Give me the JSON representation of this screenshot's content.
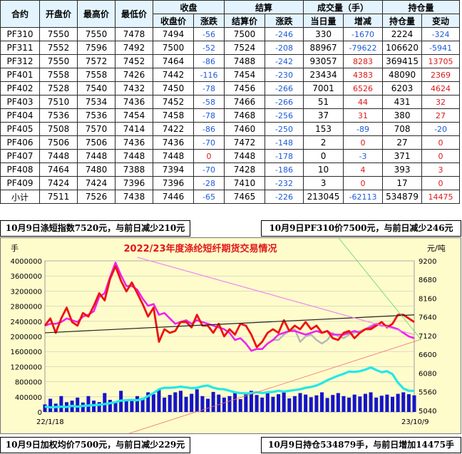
{
  "table": {
    "headers_top": {
      "contract": "合约",
      "open": "开盘价",
      "high": "最高价",
      "low": "最低价",
      "close_group": "收盘",
      "settle_group": "结算",
      "volume_group": "成交量（手）",
      "oi_group": "持仓量"
    },
    "headers_sub": {
      "close_price": "收盘价",
      "close_change": "涨跌",
      "settle_price": "结算价",
      "settle_change": "涨跌",
      "volume_today": "当日量",
      "volume_change": "增减",
      "oi_amount": "持仓量",
      "oi_change": "变动"
    },
    "rows": [
      {
        "contract": "PF310",
        "open": "7550",
        "high": "7550",
        "low": "7478",
        "close": "7494",
        "close_chg": "-56",
        "settle": "7500",
        "settle_chg": "-246",
        "vol": "330",
        "vol_chg": "-1670",
        "oi": "2224",
        "oi_chg": "-324"
      },
      {
        "contract": "PF311",
        "open": "7552",
        "high": "7596",
        "low": "7492",
        "close": "7500",
        "close_chg": "-52",
        "settle": "7524",
        "settle_chg": "-208",
        "vol": "88967",
        "vol_chg": "-79622",
        "oi": "106620",
        "oi_chg": "-5941"
      },
      {
        "contract": "PF312",
        "open": "7550",
        "high": "7572",
        "low": "7452",
        "close": "7464",
        "close_chg": "-86",
        "settle": "7488",
        "settle_chg": "-242",
        "vol": "93057",
        "vol_chg": "8283",
        "oi": "369415",
        "oi_chg": "13705"
      },
      {
        "contract": "PF401",
        "open": "7558",
        "high": "7558",
        "low": "7426",
        "close": "7442",
        "close_chg": "-116",
        "settle": "7454",
        "settle_chg": "-230",
        "vol": "23434",
        "vol_chg": "4383",
        "oi": "48090",
        "oi_chg": "2369"
      },
      {
        "contract": "PF402",
        "open": "7528",
        "high": "7540",
        "low": "7432",
        "close": "7450",
        "close_chg": "-78",
        "settle": "7456",
        "settle_chg": "-266",
        "vol": "7001",
        "vol_chg": "6526",
        "oi": "6203",
        "oi_chg": "4624"
      },
      {
        "contract": "PF403",
        "open": "7510",
        "high": "7534",
        "low": "7436",
        "close": "7452",
        "close_chg": "-58",
        "settle": "7466",
        "settle_chg": "-266",
        "vol": "51",
        "vol_chg": "44",
        "oi": "431",
        "oi_chg": "32"
      },
      {
        "contract": "PF404",
        "open": "7536",
        "high": "7536",
        "low": "7454",
        "close": "7458",
        "close_chg": "-78",
        "settle": "7468",
        "settle_chg": "-256",
        "vol": "37",
        "vol_chg": "31",
        "oi": "380",
        "oi_chg": "27"
      },
      {
        "contract": "PF405",
        "open": "7508",
        "high": "7570",
        "low": "7414",
        "close": "7422",
        "close_chg": "-86",
        "settle": "7460",
        "settle_chg": "-250",
        "vol": "153",
        "vol_chg": "-89",
        "oi": "708",
        "oi_chg": "-20"
      },
      {
        "contract": "PF406",
        "open": "7506",
        "high": "7506",
        "low": "7436",
        "close": "7436",
        "close_chg": "-70",
        "settle": "7472",
        "settle_chg": "-148",
        "vol": "2",
        "vol_chg": "0",
        "oi": "27",
        "oi_chg": "0"
      },
      {
        "contract": "PF407",
        "open": "7448",
        "high": "7448",
        "low": "7448",
        "close": "7448",
        "close_chg": "0",
        "settle": "7448",
        "settle_chg": "-178",
        "vol": "0",
        "vol_chg": "-3",
        "oi": "371",
        "oi_chg": "0"
      },
      {
        "contract": "PF408",
        "open": "7464",
        "high": "7480",
        "low": "7388",
        "close": "7394",
        "close_chg": "-70",
        "settle": "7428",
        "settle_chg": "-186",
        "vol": "10",
        "vol_chg": "4",
        "oi": "393",
        "oi_chg": "3"
      },
      {
        "contract": "PF409",
        "open": "7424",
        "high": "7424",
        "low": "7396",
        "close": "7396",
        "close_chg": "-28",
        "settle": "7410",
        "settle_chg": "-232",
        "vol": "3",
        "vol_chg": "0",
        "oi": "17",
        "oi_chg": "0"
      },
      {
        "contract": "小计",
        "open": "7511",
        "high": "7526",
        "low": "7438",
        "close": "7446",
        "close_chg": "-65",
        "settle": "7465",
        "settle_chg": "-226",
        "vol": "213045",
        "vol_chg": "-62113",
        "oi": "534879",
        "oi_chg": "14475"
      }
    ]
  },
  "notes": {
    "short_index": "10月9日涤短指数7520元，与前日减少210元",
    "pf310": "10月9日PF310价7500元，与前日减少246元",
    "weighted_avg": "10月9日加权均价7500元，与前日减少229元",
    "open_interest": "10月9日持仓534879手，与前日增加14475手"
  },
  "colors": {
    "up": "#e01818",
    "down": "#1d5bd8",
    "header_bg": "#e3f4ff",
    "chart_bg": "#fffccc"
  },
  "chart_data": {
    "type": "line",
    "title": "2022/23年度涤纶短纤期货交易情况",
    "left_axis_unit": "手",
    "right_axis_unit": "元/吨",
    "left_ticks": [
      "4000000",
      "3600000",
      "3200000",
      "2800000",
      "2400000",
      "2000000",
      "1600000",
      "1200000",
      "800000",
      "400000",
      "0"
    ],
    "right_ticks": [
      "9200",
      "8680",
      "8160",
      "7640",
      "7120",
      "6600",
      "6080",
      "5560",
      "5040"
    ],
    "left_ylim": [
      0,
      4000000
    ],
    "right_ylim": [
      5000,
      9200
    ],
    "x_start_label": "22/1/18",
    "x_end_label": "23/10/9",
    "grid": true,
    "series": [
      {
        "axis": "right",
        "color": "#ee1111",
        "values": [
          7400,
          7600,
          7200,
          7600,
          7900,
          7500,
          7400,
          7750,
          7650,
          7950,
          8300,
          8100,
          8700,
          9050,
          8650,
          8350,
          8600,
          8300,
          8000,
          7650,
          7900,
          6950,
          7300,
          7200,
          7250,
          7500,
          7500,
          7350,
          7700,
          7400,
          7400,
          7200,
          7450,
          7100,
          7300,
          7150,
          7450,
          7400,
          7150,
          6800,
          6950,
          7200,
          7300,
          7200,
          7550,
          7250,
          7400,
          7300,
          7500,
          7300,
          7400,
          7200,
          7250,
          7050,
          7000,
          7200,
          7250,
          7050,
          7200,
          7300,
          7300,
          7400,
          7500,
          7350,
          7450,
          7700,
          7700,
          7600,
          7500
        ]
      },
      {
        "axis": "right",
        "color": "#ee22ee",
        "values": [
          7400,
          7450,
          7450,
          7500,
          7600,
          7550,
          7500,
          7650,
          7700,
          7800,
          8200,
          8300,
          8750,
          9150,
          8800,
          8500,
          8500,
          8400,
          8150,
          7950,
          8000,
          7700,
          7750,
          7600,
          7450,
          7500,
          7550,
          7450,
          7550,
          7500,
          7450,
          7400,
          7350,
          7300,
          7200,
          7000,
          7050,
          6900,
          6700,
          6750,
          6750,
          6900,
          7000,
          7150,
          7200,
          7250,
          7250,
          7200,
          7150,
          7200,
          7250,
          7200,
          7250,
          7150,
          7150,
          7150,
          7200,
          7250,
          7200,
          7300,
          7350,
          7450,
          7400,
          7400,
          7350,
          7300,
          7200,
          7100,
          7050
        ]
      },
      {
        "axis": "right",
        "color": "#b8b8b8",
        "values": [
          null,
          null,
          null,
          null,
          null,
          null,
          null,
          null,
          null,
          null,
          null,
          null,
          null,
          null,
          null,
          null,
          null,
          null,
          null,
          null,
          null,
          null,
          null,
          null,
          null,
          null,
          null,
          null,
          null,
          null,
          null,
          null,
          null,
          null,
          null,
          null,
          null,
          null,
          null,
          null,
          null,
          null,
          7000,
          7000,
          7150,
          7250,
          7300,
          6950,
          7100,
          7150,
          7000,
          6900,
          7000,
          7200,
          7100,
          7050,
          7150,
          7200,
          7250,
          7300,
          7400,
          7450,
          null,
          null,
          null,
          null,
          null,
          null,
          null
        ]
      },
      {
        "axis": "left",
        "color": "#22e8e8",
        "values": [
          140000,
          120000,
          130000,
          140000,
          130000,
          160000,
          140000,
          160000,
          170000,
          180000,
          190000,
          210000,
          230000,
          260000,
          300000,
          310000,
          320000,
          310000,
          340000,
          420000,
          500000,
          600000,
          640000,
          640000,
          650000,
          670000,
          650000,
          630000,
          640000,
          680000,
          700000,
          640000,
          610000,
          600000,
          560000,
          520000,
          500000,
          490000,
          500000,
          520000,
          500000,
          520000,
          530000,
          560000,
          540000,
          560000,
          580000,
          600000,
          640000,
          660000,
          700000,
          760000,
          840000,
          900000,
          960000,
          1010000,
          1070000,
          1060000,
          1080000,
          1120000,
          1180000,
          1110000,
          1050000,
          1080000,
          1000000,
          780000,
          620000,
          560000,
          560000
        ]
      },
      {
        "axis": "left",
        "color": "#1515c8",
        "values": [
          200000,
          350000,
          220000,
          420000,
          260000,
          300000,
          380000,
          250000,
          420000,
          300000,
          260000,
          500000,
          320000,
          280000,
          560000,
          330000,
          300000,
          420000,
          370000,
          520000,
          470000,
          600000,
          380000,
          450000,
          520000,
          560000,
          400000,
          480000,
          600000,
          420000,
          350000,
          530000,
          460000,
          380000,
          420000,
          520000,
          340000,
          480000,
          560000,
          450000,
          380000,
          500000,
          400000,
          470000,
          530000,
          360000,
          420000,
          500000,
          460000,
          390000,
          440000,
          520000,
          370000,
          450000,
          500000,
          420000,
          380000,
          460000,
          410000,
          480000,
          520000,
          380000,
          430000,
          460000,
          400000,
          480000,
          520000,
          470000,
          440000
        ]
      }
    ],
    "trend_lines": [
      {
        "axis": "right",
        "color": "#222222",
        "from": [
          0,
          7200
        ],
        "to": [
          68,
          7700
        ]
      },
      {
        "axis": "right",
        "color": "#ee88ee",
        "from": [
          17,
          9300
        ],
        "to": [
          68,
          7150
        ]
      }
    ]
  }
}
